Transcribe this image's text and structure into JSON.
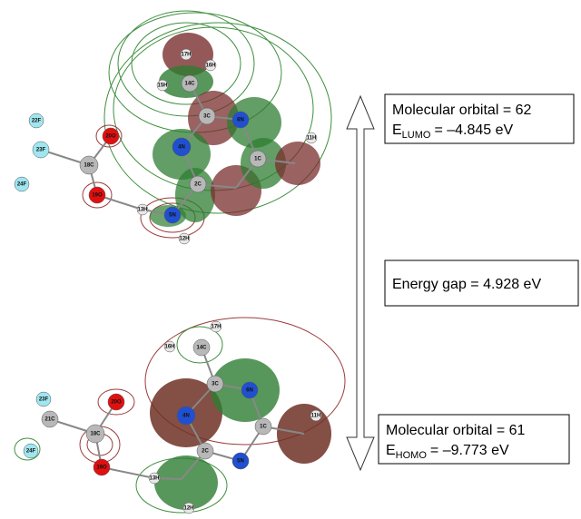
{
  "top_box": {
    "line1": "Molecular orbital = 62",
    "symbol": "E",
    "subscript": "LUMO",
    "value": "= –4.845 eV"
  },
  "gap_box": {
    "text": "Energy gap = 4.928 eV"
  },
  "bottom_box": {
    "line1": "Molecular orbital = 61",
    "symbol": "E",
    "subscript": "HOMO",
    "value": "= –9.773 eV"
  },
  "lumo_atoms": [
    "22F",
    "23F",
    "24F",
    "18C",
    "20O",
    "19O",
    "4N",
    "13H",
    "5N",
    "12H",
    "2C",
    "1C",
    "11H",
    "3C",
    "6N",
    "14C",
    "15H",
    "16H",
    "17H"
  ],
  "homo_atoms": [
    "23F",
    "21C",
    "24F",
    "18C",
    "20O",
    "19O",
    "4N",
    "13H",
    "12H",
    "2C",
    "5N",
    "1C",
    "11H",
    "3C",
    "6N",
    "14C",
    "16H",
    "17H"
  ]
}
